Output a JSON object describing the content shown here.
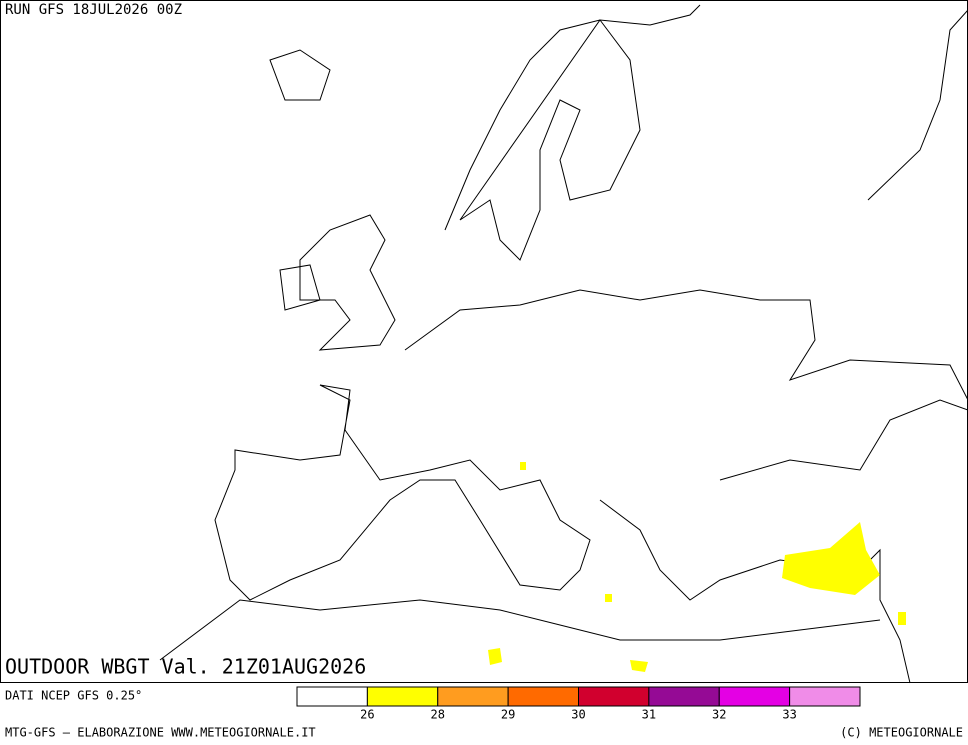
{
  "header": {
    "run": "RUN GFS 18JUL2026 00Z",
    "field": "OUTDOOR WBGT Val. 21Z01AUG2026",
    "source": "DATI NCEP GFS 0.25°"
  },
  "legend": {
    "colors": [
      "#ffffff",
      "#ffff00",
      "#ff9c1f",
      "#ff6a00",
      "#d1002e",
      "#950a95",
      "#e400e4",
      "#f08ce8"
    ],
    "ticks": [
      26,
      28,
      29,
      30,
      31,
      32,
      33
    ]
  },
  "footer": {
    "left": "MTG-GFS — ELABORAZIONE WWW.METEOGIORNALE.IT",
    "right": "(C) METEOGIORNALE"
  }
}
